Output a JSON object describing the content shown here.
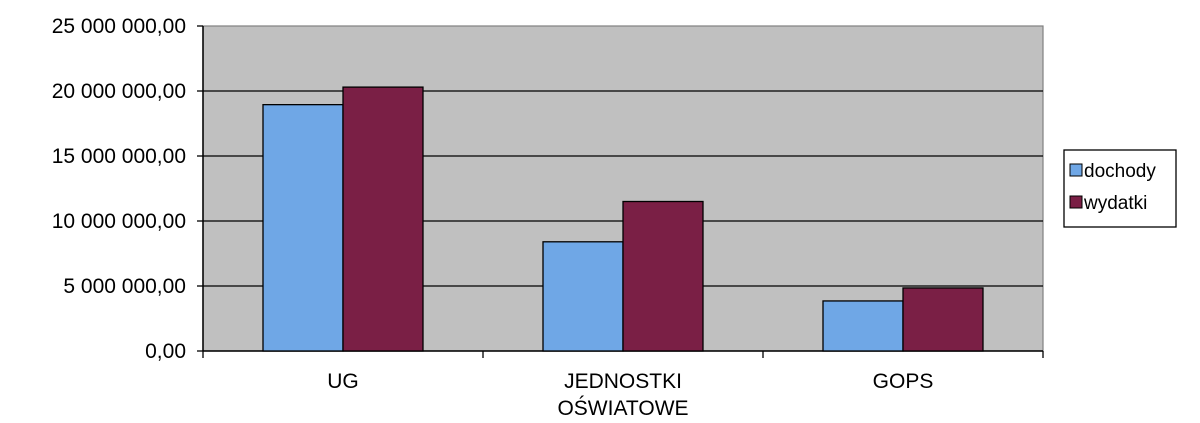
{
  "chart_data": {
    "type": "bar",
    "categories": [
      "UG",
      "JEDNOSTKI\nOŚWIATOWE",
      "GOPS"
    ],
    "series": [
      {
        "name": "dochody",
        "color": "#6fa7e6",
        "values": [
          18950000,
          8400000,
          3850000
        ]
      },
      {
        "name": "wydatki",
        "color": "#7a1f45",
        "values": [
          20300000,
          11500000,
          4850000
        ]
      }
    ],
    "ylim": [
      0,
      25000000
    ],
    "yticks": [
      0,
      5000000,
      10000000,
      15000000,
      20000000,
      25000000
    ],
    "ytick_labels": [
      "0,00",
      "5 000 000,00",
      "10 000 000,00",
      "15 000 000,00",
      "20 000 000,00",
      "25 000 000,00"
    ],
    "grid": true,
    "plot_background": "#c0c0c0",
    "legend_position": "right",
    "title": "",
    "xlabel": "",
    "ylabel": ""
  }
}
